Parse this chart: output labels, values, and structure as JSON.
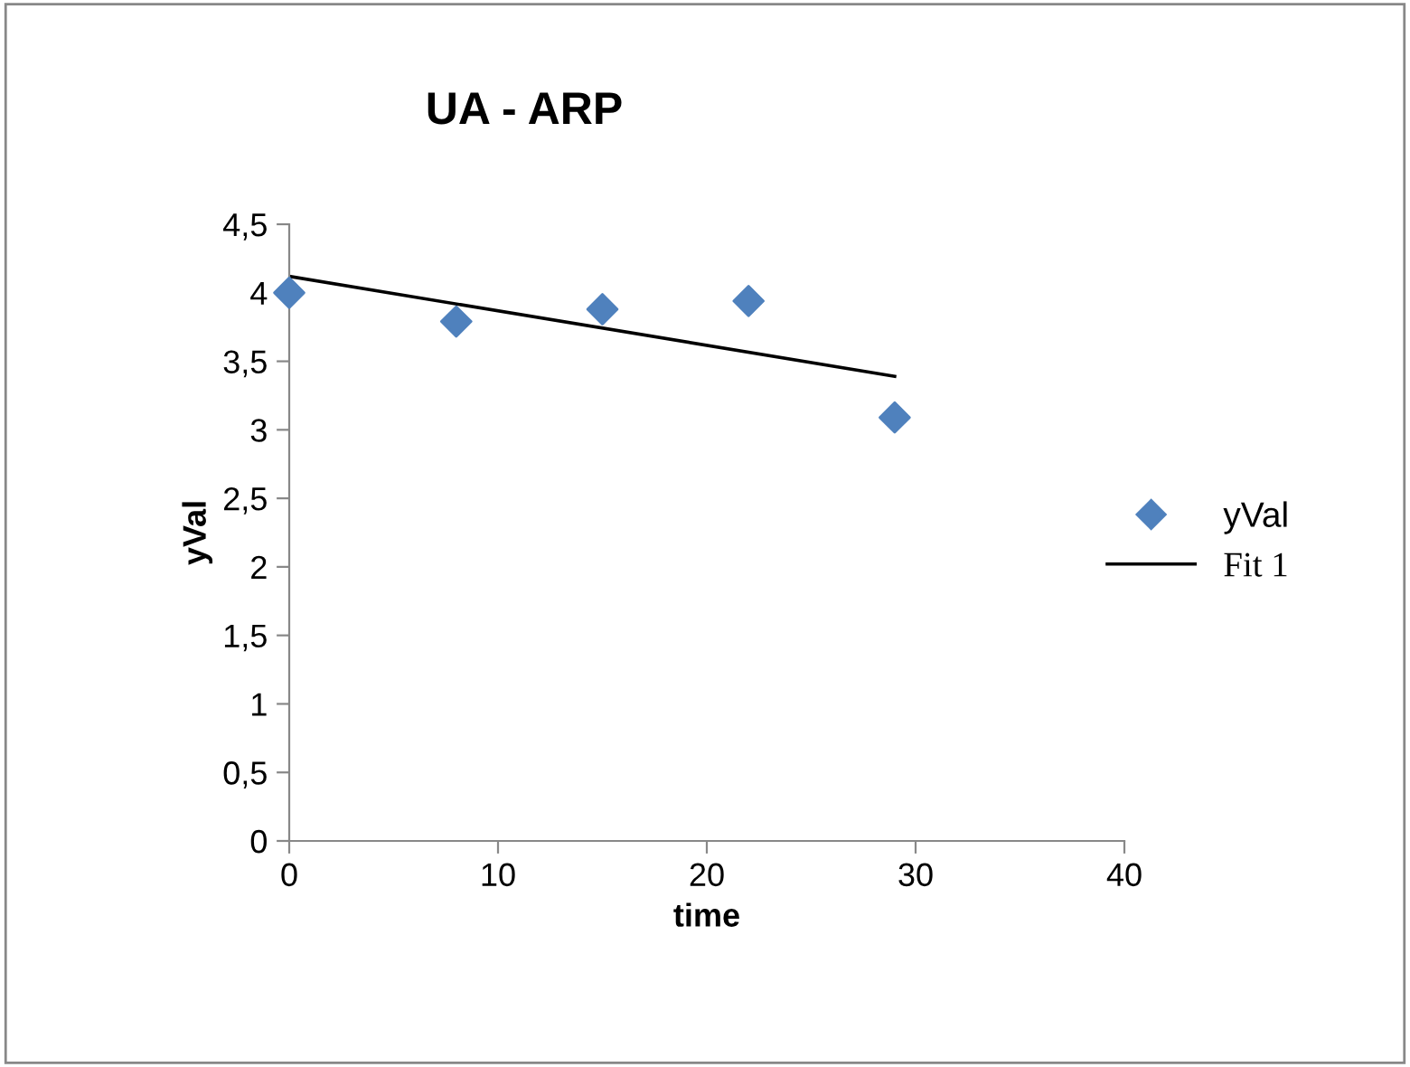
{
  "chart_data": {
    "type": "scatter",
    "title": "UA - ARP",
    "xlabel": "time",
    "ylabel": "yVal",
    "series": [
      {
        "name": "yVal",
        "color": "#4f81bd",
        "marker": "diamond",
        "x": [
          0,
          8,
          15,
          22,
          29
        ],
        "values": [
          4.0,
          3.79,
          3.88,
          3.94,
          3.09
        ]
      },
      {
        "name": "Fit 1",
        "type": "line",
        "color": "#000000",
        "marker": "none",
        "line_style": "solid",
        "x": [
          0,
          29
        ],
        "values": [
          4.12,
          3.39
        ]
      }
    ],
    "xlim": [
      0,
      40
    ],
    "xticks": [
      0,
      10,
      20,
      30,
      40
    ],
    "ylim": [
      0,
      4.5
    ],
    "yticks": [
      0,
      {
        "value": 0.5,
        "label": "0,5"
      },
      1,
      {
        "value": 1.5,
        "label": "1,5"
      },
      2,
      {
        "value": 2.5,
        "label": "2,5"
      },
      3,
      {
        "value": 3.5,
        "label": "3,5"
      },
      4,
      {
        "value": 4.5,
        "label": "4,5"
      }
    ],
    "grid": false,
    "legend": "right"
  }
}
